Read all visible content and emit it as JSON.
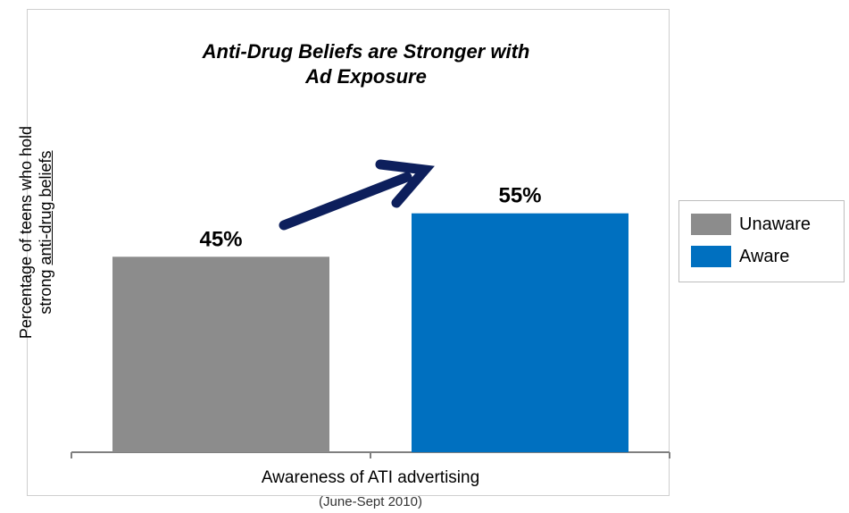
{
  "chart_data": {
    "type": "bar",
    "title": "Anti-Drug Beliefs are Stronger with Ad Exposure",
    "title_lines": [
      "Anti-Drug Beliefs are Stronger with",
      "Ad Exposure"
    ],
    "ylabel_lines": [
      "Percentage of teens who hold",
      "strong anti-drug beliefs"
    ],
    "ylabel_prefix": "strong ",
    "ylabel_underlined": "anti-drug beliefs",
    "xlabel": "Awareness of ATI advertising",
    "xlabel_sub": "(June-Sept 2010)",
    "categories": [
      "Unaware",
      "Aware"
    ],
    "values": [
      45,
      55
    ],
    "data_labels": [
      "45%",
      "55%"
    ],
    "colors": [
      "#8c8c8c",
      "#0070c0"
    ],
    "ylim": [
      0,
      100
    ],
    "grid": false,
    "legend": {
      "position": "right",
      "items": [
        {
          "label": "Unaware",
          "color": "#8c8c8c"
        },
        {
          "label": "Aware",
          "color": "#0070c0"
        }
      ]
    },
    "annotations": [
      {
        "type": "arrow",
        "direction": "up-right",
        "color": "#0d1f5c"
      }
    ]
  }
}
